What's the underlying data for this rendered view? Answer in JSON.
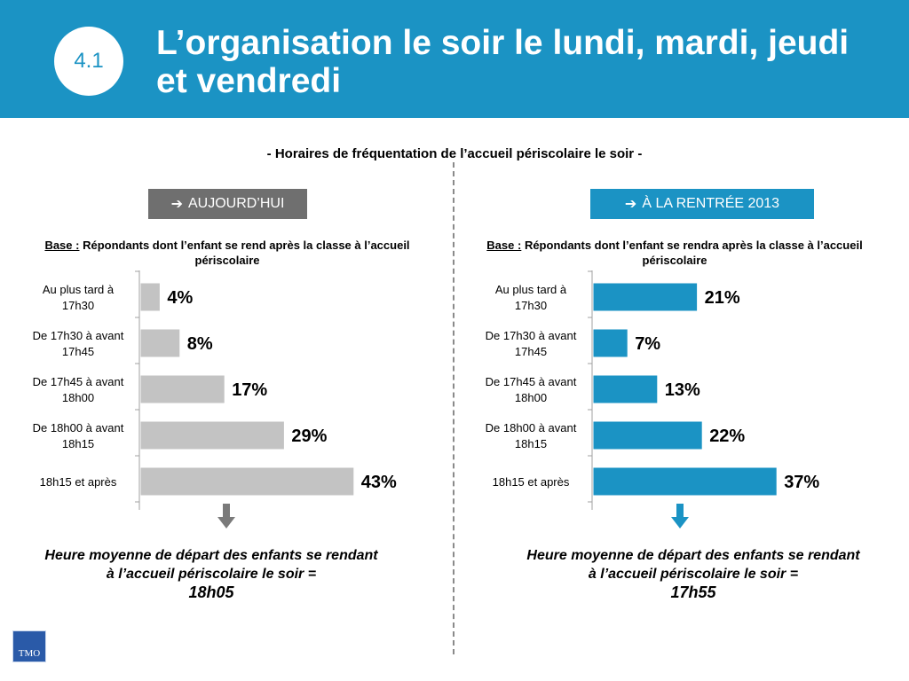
{
  "header": {
    "badge": "4.1",
    "title": "L’organisation le soir le lundi, mardi, jeudi et vendredi"
  },
  "subtitle": "- Horaires de fréquentation de l’accueil périscolaire le soir -",
  "left": {
    "tag": "AUJOURD’HUI",
    "base_key": "Base :",
    "base_text": " Répondants dont l’enfant se rend après la classe à l’accueil périscolaire",
    "note": "Heure moyenne de départ des enfants se rendant à l’accueil périscolaire le soir =",
    "note_value": "18h05"
  },
  "right": {
    "tag": "À LA RENTRÉE 2013",
    "base_key": "Base :",
    "base_text": " Répondants dont l’enfant se rendra après la classe à l’accueil périscolaire",
    "note": "Heure moyenne de départ des enfants se rendant à l’accueil périscolaire le soir =",
    "note_value": "17h55"
  },
  "icons": {
    "tag_arrow": "arrow-right-icon",
    "down_arrow": "arrow-down-icon"
  },
  "colors": {
    "header": "#1b93c4",
    "left_bars": "#c3c3c3",
    "right_bars": "#1b93c4",
    "left_tag": "#6f6f6f",
    "left_arrow": "#7a7a7a"
  },
  "logo": "TMO",
  "chart_data": [
    {
      "type": "bar",
      "orientation": "horizontal",
      "categories": [
        [
          "Au plus tard à",
          "17h30"
        ],
        [
          "De 17h30 à avant",
          "17h45"
        ],
        [
          "De 17h45 à avant",
          "18h00"
        ],
        [
          "De 18h00 à avant",
          "18h15"
        ],
        [
          "18h15 et après"
        ]
      ],
      "values": [
        4,
        8,
        17,
        29,
        43
      ],
      "labels": [
        "4%",
        "8%",
        "17%",
        "29%",
        "43%"
      ],
      "color": "#c3c3c3"
    },
    {
      "type": "bar",
      "orientation": "horizontal",
      "categories": [
        [
          "Au plus tard à",
          "17h30"
        ],
        [
          "De 17h30 à avant",
          "17h45"
        ],
        [
          "De 17h45 à avant",
          "18h00"
        ],
        [
          "De 18h00 à avant",
          "18h15"
        ],
        [
          "18h15 et après"
        ]
      ],
      "values": [
        21,
        7,
        13,
        22,
        37
      ],
      "labels": [
        "21%",
        "7%",
        "13%",
        "22%",
        "37%"
      ],
      "color": "#1b93c4"
    }
  ]
}
